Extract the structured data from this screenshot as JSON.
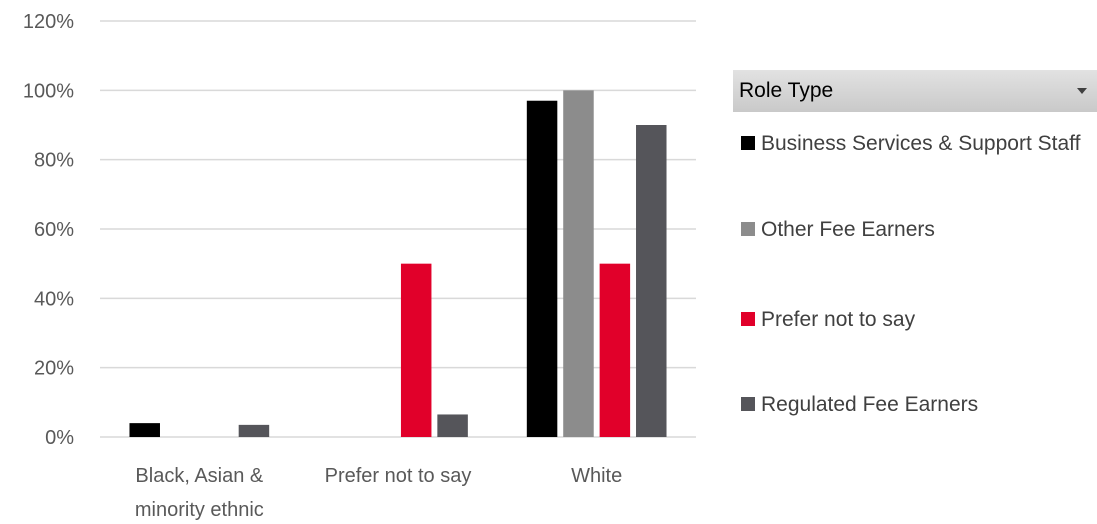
{
  "chart_data": {
    "type": "bar",
    "title": "",
    "xlabel": "",
    "ylabel": "",
    "ylim": [
      0,
      1.2
    ],
    "yticks": [
      0,
      0.2,
      0.4,
      0.6,
      0.8,
      1.0,
      1.2
    ],
    "ytick_labels": [
      "0%",
      "20%",
      "40%",
      "60%",
      "80%",
      "100%",
      "120%"
    ],
    "categories": [
      "Black, Asian & minority ethnic",
      "Prefer not to say",
      "White"
    ],
    "category_lines": [
      [
        "Black, Asian &",
        "minority ethnic"
      ],
      [
        "Prefer not to say"
      ],
      [
        "White"
      ]
    ],
    "grid": true,
    "legend_position": "right",
    "series": [
      {
        "name": "Business Services & Support Staff",
        "color": "#000000",
        "values": [
          0.04,
          0,
          0.97
        ]
      },
      {
        "name": "Other Fee Earners",
        "color": "#8c8c8c",
        "values": [
          0,
          0,
          1.0
        ]
      },
      {
        "name": "Prefer not to say",
        "color": "#e1002a",
        "values": [
          0,
          0.5,
          0.5
        ]
      },
      {
        "name": "Regulated Fee Earners",
        "color": "#55555a",
        "values": [
          0.035,
          0.065,
          0.9
        ]
      }
    ]
  },
  "legend": {
    "title": "Role Type",
    "items": [
      {
        "label": "Business Services & Support Staff",
        "color": "#000000"
      },
      {
        "label": "Other Fee Earners",
        "color": "#8c8c8c"
      },
      {
        "label": "Prefer not to say",
        "color": "#e1002a"
      },
      {
        "label": "Regulated Fee Earners",
        "color": "#55555a"
      }
    ]
  },
  "colors": {
    "gridline": "#d9d9d9",
    "axis_text": "#595959"
  }
}
